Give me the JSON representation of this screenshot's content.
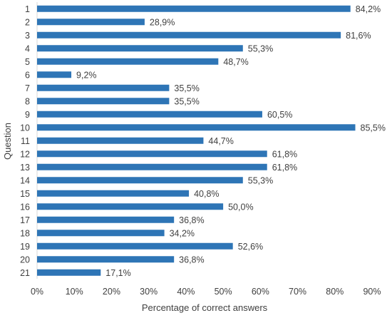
{
  "chart_data": {
    "type": "bar",
    "orientation": "horizontal",
    "categories": [
      "1",
      "2",
      "3",
      "4",
      "5",
      "6",
      "7",
      "8",
      "9",
      "10",
      "11",
      "12",
      "13",
      "14",
      "15",
      "16",
      "17",
      "18",
      "19",
      "20",
      "21"
    ],
    "values": [
      84.2,
      28.9,
      81.6,
      55.3,
      48.7,
      9.2,
      35.5,
      35.5,
      60.5,
      85.5,
      44.7,
      61.8,
      61.8,
      55.3,
      40.8,
      50.0,
      36.8,
      34.2,
      52.6,
      36.8,
      17.1
    ],
    "data_labels": [
      "84,2%",
      "28,9%",
      "81,6%",
      "55,3%",
      "48,7%",
      "9,2%",
      "35,5%",
      "35,5%",
      "60,5%",
      "85,5%",
      "44,7%",
      "61,8%",
      "61,8%",
      "55,3%",
      "40,8%",
      "50,0%",
      "36,8%",
      "34,2%",
      "52,6%",
      "36,8%",
      "17,1%"
    ],
    "x_ticks": [
      0,
      10,
      20,
      30,
      40,
      50,
      60,
      70,
      80,
      90
    ],
    "x_tick_labels": [
      "0%",
      "10%",
      "20%",
      "30%",
      "40%",
      "50%",
      "60%",
      "70%",
      "80%",
      "90%"
    ],
    "xlim": [
      0,
      90
    ],
    "xlabel": "Percentage of correct answers",
    "ylabel": "Question",
    "title": "",
    "grid": false,
    "legend": "none",
    "bar_color": "#2E75B6"
  }
}
